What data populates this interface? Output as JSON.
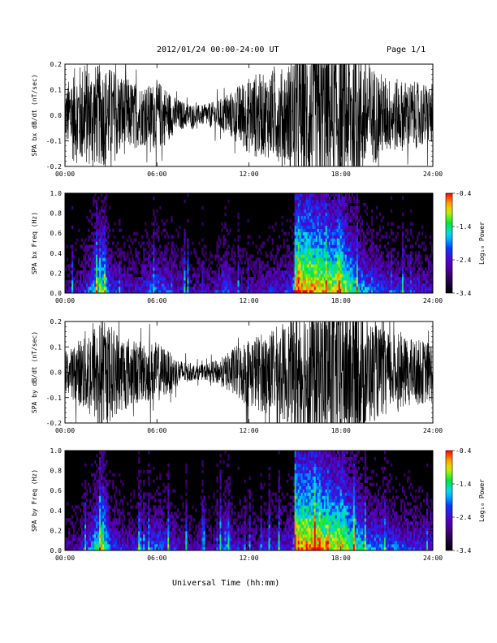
{
  "header": {
    "title": "2012/01/24  00:00-24:00 UT",
    "page": "Page 1/1"
  },
  "xaxis_label": "Universal Time (hh:mm)",
  "chart_data": [
    {
      "type": "line",
      "ylabel": "SPA bx dB/dt (nT/sec)",
      "xlim": [
        0,
        24
      ],
      "ylim": [
        -0.2,
        0.2
      ],
      "x_ticks": [
        "00:00",
        "06:00",
        "12:00",
        "18:00",
        "24:00"
      ],
      "y_ticks": [
        "0.2",
        "0.1",
        "0.0",
        "-0.1",
        "-0.2"
      ],
      "envelope": {
        "x_hours": [
          0,
          0.5,
          1.0,
          1.5,
          2.0,
          2.5,
          3.0,
          3.5,
          4.0,
          4.5,
          5.0,
          5.5,
          6.0,
          6.5,
          7.0,
          7.5,
          8.0,
          8.5,
          9.0,
          9.5,
          10.0,
          10.5,
          11.0,
          11.5,
          12.0,
          12.5,
          13.0,
          13.5,
          14.0,
          14.5,
          15.0,
          15.5,
          16.0,
          17.0,
          18.0,
          19.0,
          20.0,
          21.0,
          22.0,
          23.0,
          24.0
        ],
        "amplitude": [
          0.1,
          0.18,
          0.2,
          0.2,
          0.2,
          0.2,
          0.19,
          0.17,
          0.15,
          0.13,
          0.12,
          0.12,
          0.14,
          0.12,
          0.08,
          0.06,
          0.05,
          0.04,
          0.04,
          0.05,
          0.06,
          0.08,
          0.1,
          0.13,
          0.15,
          0.17,
          0.16,
          0.18,
          0.18,
          0.2,
          0.25,
          0.3,
          0.3,
          0.3,
          0.3,
          0.3,
          0.2,
          0.15,
          0.14,
          0.13,
          0.12
        ]
      }
    },
    {
      "type": "heatmap",
      "ylabel": "SPA bx Freq (Hz)",
      "xlim": [
        0,
        24
      ],
      "ylim": [
        0,
        1.0
      ],
      "x_ticks": [
        "00:00",
        "06:00",
        "12:00",
        "18:00",
        "24:00"
      ],
      "y_ticks": [
        "1.0",
        "0.8",
        "0.6",
        "0.4",
        "0.2",
        "0.0"
      ],
      "colorbar": {
        "label": "Log₁₀ Power",
        "ticks": [
          "-0.4",
          "-1.4",
          "-2.4",
          "-3.4"
        ],
        "range": [
          -3.4,
          -0.4
        ]
      },
      "activity": {
        "x_hours": [
          0,
          1.0,
          1.5,
          2.0,
          2.5,
          3.0,
          4.0,
          5.0,
          6.0,
          6.5,
          8.0,
          10.0,
          10.5,
          11.0,
          12.0,
          13.0,
          14.0,
          14.9,
          15.0,
          16.0,
          17.0,
          17.5,
          18.0,
          19.0,
          20.0,
          22.0,
          24.0
        ],
        "level": [
          0.3,
          0.4,
          0.5,
          0.7,
          0.8,
          0.5,
          0.4,
          0.45,
          0.55,
          0.5,
          0.35,
          0.35,
          0.6,
          0.4,
          0.35,
          0.4,
          0.45,
          0.5,
          1.0,
          1.0,
          0.95,
          0.9,
          0.95,
          0.7,
          0.55,
          0.45,
          0.4
        ]
      }
    },
    {
      "type": "line",
      "ylabel": "SPA by dB/dt (nT/sec)",
      "xlim": [
        0,
        24
      ],
      "ylim": [
        -0.2,
        0.2
      ],
      "x_ticks": [
        "00:00",
        "06:00",
        "12:00",
        "18:00",
        "24:00"
      ],
      "y_ticks": [
        "0.2",
        "0.1",
        "0.0",
        "-0.1",
        "-0.2"
      ],
      "envelope": {
        "x_hours": [
          0,
          0.5,
          1.0,
          1.5,
          2.0,
          2.5,
          3.0,
          3.5,
          4.0,
          4.5,
          5.0,
          5.5,
          6.0,
          6.5,
          7.0,
          7.5,
          8.0,
          8.5,
          9.0,
          9.5,
          10.0,
          10.5,
          11.0,
          11.5,
          12.0,
          12.5,
          13.0,
          13.5,
          14.0,
          14.5,
          15.0,
          15.5,
          16.0,
          17.0,
          18.0,
          19.0,
          20.0,
          21.0,
          22.0,
          23.0,
          24.0
        ],
        "amplitude": [
          0.08,
          0.1,
          0.14,
          0.18,
          0.2,
          0.2,
          0.19,
          0.16,
          0.15,
          0.13,
          0.12,
          0.12,
          0.12,
          0.1,
          0.07,
          0.05,
          0.04,
          0.03,
          0.03,
          0.04,
          0.05,
          0.07,
          0.1,
          0.12,
          0.14,
          0.15,
          0.16,
          0.17,
          0.19,
          0.2,
          0.25,
          0.3,
          0.3,
          0.3,
          0.3,
          0.3,
          0.2,
          0.16,
          0.14,
          0.13,
          0.12
        ]
      }
    },
    {
      "type": "heatmap",
      "ylabel": "SPA by Freq (Hz)",
      "xlim": [
        0,
        24
      ],
      "ylim": [
        0,
        1.0
      ],
      "x_ticks": [
        "00:00",
        "06:00",
        "12:00",
        "18:00",
        "24:00"
      ],
      "y_ticks": [
        "1.0",
        "0.8",
        "0.6",
        "0.4",
        "0.2",
        "0.0"
      ],
      "colorbar": {
        "label": "Log₁₀ Power",
        "ticks": [
          "-0.4",
          "-1.4",
          "-2.4",
          "-3.4"
        ],
        "range": [
          -3.4,
          -0.4
        ]
      },
      "activity": {
        "x_hours": [
          0,
          1.0,
          1.5,
          2.0,
          2.5,
          3.0,
          4.0,
          5.0,
          6.0,
          6.5,
          8.0,
          10.0,
          10.5,
          11.0,
          12.0,
          13.0,
          14.0,
          14.9,
          15.0,
          16.0,
          17.0,
          17.5,
          18.0,
          19.0,
          20.0,
          22.0,
          24.0
        ],
        "level": [
          0.3,
          0.4,
          0.5,
          0.7,
          0.85,
          0.5,
          0.4,
          0.45,
          0.55,
          0.5,
          0.35,
          0.35,
          0.65,
          0.4,
          0.35,
          0.4,
          0.45,
          0.5,
          1.0,
          1.0,
          0.95,
          0.9,
          0.95,
          0.75,
          0.6,
          0.5,
          0.45
        ]
      }
    }
  ]
}
